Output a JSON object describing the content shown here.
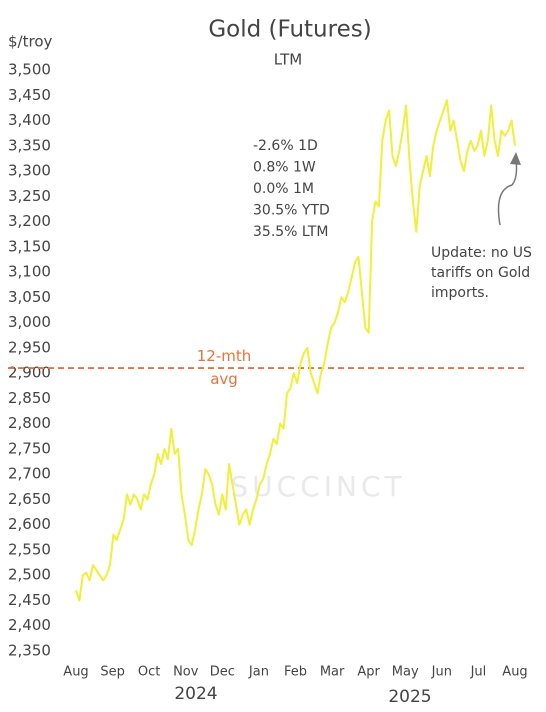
{
  "chart_data": {
    "type": "line",
    "title": "Gold (Futures)",
    "subtitle": "LTM",
    "y_axis_label": "$/troy",
    "x_labels": [
      "Aug",
      "Sep",
      "Oct",
      "Nov",
      "Dec",
      "Jan",
      "Feb",
      "Mar",
      "Apr",
      "May",
      "Jun",
      "Jul",
      "Aug"
    ],
    "year_labels": [
      "2024",
      "2025"
    ],
    "series": [
      {
        "name": "Gold",
        "color": "#f0ef3a",
        "values": [
          2470,
          2450,
          2500,
          2505,
          2490,
          2520,
          2510,
          2500,
          2490,
          2500,
          2520,
          2580,
          2570,
          2590,
          2610,
          2660,
          2640,
          2660,
          2650,
          2630,
          2660,
          2650,
          2680,
          2700,
          2740,
          2720,
          2750,
          2730,
          2790,
          2740,
          2750,
          2660,
          2620,
          2570,
          2560,
          2590,
          2630,
          2660,
          2710,
          2700,
          2680,
          2640,
          2620,
          2660,
          2630,
          2720,
          2680,
          2640,
          2600,
          2620,
          2630,
          2600,
          2630,
          2650,
          2680,
          2690,
          2720,
          2740,
          2770,
          2760,
          2800,
          2790,
          2860,
          2870,
          2900,
          2880,
          2920,
          2940,
          2950,
          2900,
          2880,
          2860,
          2900,
          2920,
          2960,
          2990,
          3000,
          3020,
          3050,
          3040,
          3060,
          3090,
          3120,
          3130,
          3060,
          2990,
          2980,
          3200,
          3240,
          3230,
          3360,
          3400,
          3420,
          3330,
          3310,
          3340,
          3380,
          3430,
          3320,
          3240,
          3180,
          3270,
          3300,
          3330,
          3290,
          3350,
          3380,
          3400,
          3420,
          3440,
          3380,
          3400,
          3360,
          3320,
          3300,
          3340,
          3360,
          3340,
          3350,
          3380,
          3330,
          3360,
          3430,
          3360,
          3330,
          3380,
          3370,
          3380,
          3400,
          3350
        ]
      }
    ],
    "average": {
      "value": 2910,
      "label": "12-mth avg",
      "color": "#e8733a"
    },
    "stats": [
      "-2.6%  1D",
      "0.8%  1W",
      "0.0%  1M",
      "30.5%  YTD",
      "35.5%  LTM"
    ],
    "annotation": "Update: no US tariffs on Gold imports.",
    "watermark": "SUCCINCT",
    "ylim": [
      2350,
      3500
    ],
    "yticks": [
      {
        "value": 3500,
        "label": "3,500"
      },
      {
        "value": 3450,
        "label": "3,450"
      },
      {
        "value": 3400,
        "label": "3,400"
      },
      {
        "value": 3350,
        "label": "3,350"
      },
      {
        "value": 3300,
        "label": "3,300"
      },
      {
        "value": 3250,
        "label": "3,250"
      },
      {
        "value": 3200,
        "label": "3,200"
      },
      {
        "value": 3150,
        "label": "3,150"
      },
      {
        "value": 3100,
        "label": "3,100"
      },
      {
        "value": 3050,
        "label": "3,050"
      },
      {
        "value": 3000,
        "label": "3,000"
      },
      {
        "value": 2950,
        "label": "2,950"
      },
      {
        "value": 2900,
        "label": "2,900"
      },
      {
        "value": 2850,
        "label": "2,850"
      },
      {
        "value": 2800,
        "label": "2,800"
      },
      {
        "value": 2750,
        "label": "2,750"
      },
      {
        "value": 2700,
        "label": "2,700"
      },
      {
        "value": 2650,
        "label": "2,650"
      },
      {
        "value": 2600,
        "label": "2,600"
      },
      {
        "value": 2550,
        "label": "2,550"
      },
      {
        "value": 2500,
        "label": "2,500"
      },
      {
        "value": 2450,
        "label": "2,450"
      },
      {
        "value": 2400,
        "label": "2,400"
      },
      {
        "value": 2350,
        "label": "2,350"
      }
    ],
    "grid": false
  }
}
